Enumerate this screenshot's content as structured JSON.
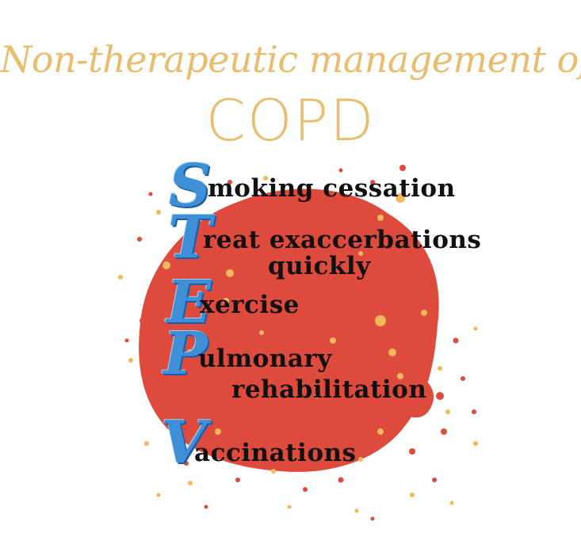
{
  "title": {
    "line1": "Non-therapeutic management of",
    "line2": "COPD"
  },
  "mnemonic": [
    {
      "letter": "S",
      "rest": "moking cessation",
      "rest2": ""
    },
    {
      "letter": "T",
      "rest": "reat exaccerbations",
      "rest2": "quickly"
    },
    {
      "letter": "E",
      "rest": "xercise",
      "rest2": ""
    },
    {
      "letter": "P",
      "rest": "ulmonary",
      "rest2": "rehabilitation"
    },
    {
      "letter": "V",
      "rest": "accinations",
      "rest2": ""
    }
  ],
  "colors": {
    "title": "#e8bd6f",
    "splash_red": "#de4a3c",
    "splash_yellow": "#f1b95a",
    "initials": "#3f8fd6",
    "text": "#111111"
  }
}
